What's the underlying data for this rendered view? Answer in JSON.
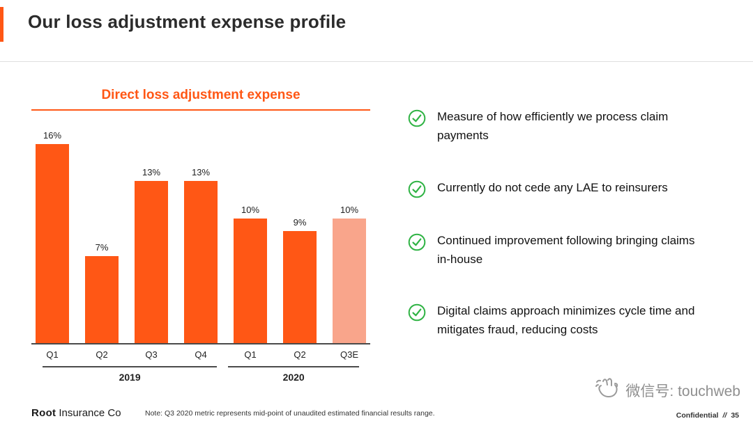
{
  "header": {
    "title": "Our loss adjustment expense profile"
  },
  "colors": {
    "accent_orange": "#FF5715",
    "bar": "#FF5715",
    "bar_estimate": "#F9A58B",
    "check_green": "#2FB344",
    "axis": "#4a4a4a",
    "watermark_gray": "#8f8f8f"
  },
  "chart_data": {
    "type": "bar",
    "title": "Direct loss adjustment expense",
    "categories": [
      "Q1",
      "Q2",
      "Q3",
      "Q4",
      "Q1",
      "Q2",
      "Q3E"
    ],
    "values": [
      16,
      7,
      13,
      13,
      10,
      9,
      10
    ],
    "labels": [
      "16%",
      "7%",
      "13%",
      "13%",
      "10%",
      "9%",
      "10%"
    ],
    "groups": [
      {
        "label": "2019",
        "span": 4
      },
      {
        "label": "2020",
        "span": 3
      }
    ],
    "estimate_index": 6,
    "ylim": [
      0,
      17
    ],
    "ylabel": "",
    "xlabel": "",
    "grid": false,
    "legend": false
  },
  "bullets": {
    "icon": "check-circle-icon",
    "items": [
      "Measure of how efficiently we process claim payments",
      "Currently do not cede any LAE to reinsurers",
      "Continued improvement following bringing claims in-house",
      "Digital claims approach minimizes cycle time and mitigates fraud, reducing costs"
    ]
  },
  "footer": {
    "logo_bold": "Root",
    "logo_rest": "Insurance Co",
    "note": "Note: Q3 2020 metric represents mid-point of unaudited estimated financial results range.",
    "confidential": "Confidential",
    "separator": "//",
    "page_number": "35"
  },
  "watermark": {
    "icon": "hand-icon",
    "text": "微信号: touchweb"
  }
}
